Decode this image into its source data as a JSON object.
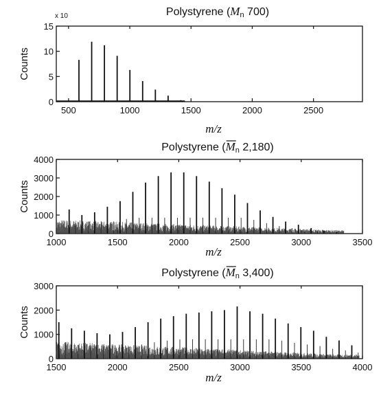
{
  "chart_data": [
    {
      "type": "line",
      "title": "Polystyrene (M_n 700)",
      "title_parts": {
        "pre": "Polystyrene (",
        "symbol": "M",
        "sub": "n",
        "post": " 700)",
        "overbar": false
      },
      "xlabel": "m/z",
      "ylabel": "Counts",
      "y_multiplier_label": "x 10",
      "xlim": [
        400,
        2900
      ],
      "ylim": [
        0,
        15
      ],
      "xticks": [
        500,
        1000,
        1500,
        2000,
        2500
      ],
      "yticks": [
        0,
        5,
        10,
        15
      ],
      "grid": false,
      "series": [
        {
          "peaks": {
            "x": [
              585,
              689,
              793,
              897,
              1001,
              1105,
              1209,
              1313,
              1417
            ],
            "y": [
              8.3,
              11.9,
              11.2,
              9.1,
              6.3,
              4.1,
              2.4,
              1.2,
              0.3
            ]
          }
        }
      ]
    },
    {
      "type": "line",
      "title": "Polystyrene (M_n 2,180)",
      "title_parts": {
        "pre": "Polystyrene (",
        "symbol": "M",
        "sub": "n",
        "post": " 2,180)",
        "overbar": true
      },
      "xlabel": "m/z",
      "ylabel": "Counts",
      "xlim": [
        1000,
        3500
      ],
      "ylim": [
        0,
        4000
      ],
      "xticks": [
        1000,
        1500,
        2000,
        2500,
        3000,
        3500
      ],
      "yticks": [
        0,
        1000,
        2000,
        3000,
        4000
      ],
      "grid": false,
      "series": [
        {
          "peaks": {
            "x": [
              1105,
              1209,
              1313,
              1417,
              1521,
              1625,
              1729,
              1833,
              1937,
              2041,
              2145,
              2249,
              2353,
              2457,
              2561,
              2665,
              2769,
              2873,
              2977,
              3081,
              3185,
              3289
            ],
            "y": [
              1300,
              1000,
              1150,
              1450,
              1750,
              2250,
              2750,
              3100,
              3300,
              3300,
              3100,
              2800,
              2450,
              2100,
              1650,
              1250,
              900,
              650,
              480,
              300,
              150,
              80
            ]
          },
          "baseline": 450
        }
      ]
    },
    {
      "type": "line",
      "title": "Polystyrene (M_n 3,400)",
      "title_parts": {
        "pre": "Polystyrene (",
        "symbol": "M",
        "sub": "n",
        "post": " 3,400)",
        "overbar": true
      },
      "xlabel": "m/z",
      "ylabel": "Counts",
      "xlim": [
        1500,
        4000
      ],
      "ylim": [
        0,
        3000
      ],
      "xticks": [
        1500,
        2000,
        2500,
        3000,
        3500,
        4000
      ],
      "yticks": [
        0,
        1000,
        2000,
        3000
      ],
      "grid": false,
      "series": [
        {
          "peaks": {
            "x": [
              1521,
              1625,
              1729,
              1833,
              1937,
              2041,
              2145,
              2249,
              2353,
              2457,
              2561,
              2665,
              2769,
              2873,
              2977,
              3081,
              3185,
              3289,
              3393,
              3497,
              3601,
              3705,
              3809,
              3913
            ],
            "y": [
              1500,
              1250,
              1150,
              1050,
              1000,
              1100,
              1300,
              1500,
              1650,
              1750,
              1850,
              1900,
              1950,
              2000,
              2150,
              1950,
              1850,
              1650,
              1450,
              1300,
              1150,
              900,
              750,
              550
            ]
          },
          "baseline": 420
        }
      ]
    }
  ]
}
